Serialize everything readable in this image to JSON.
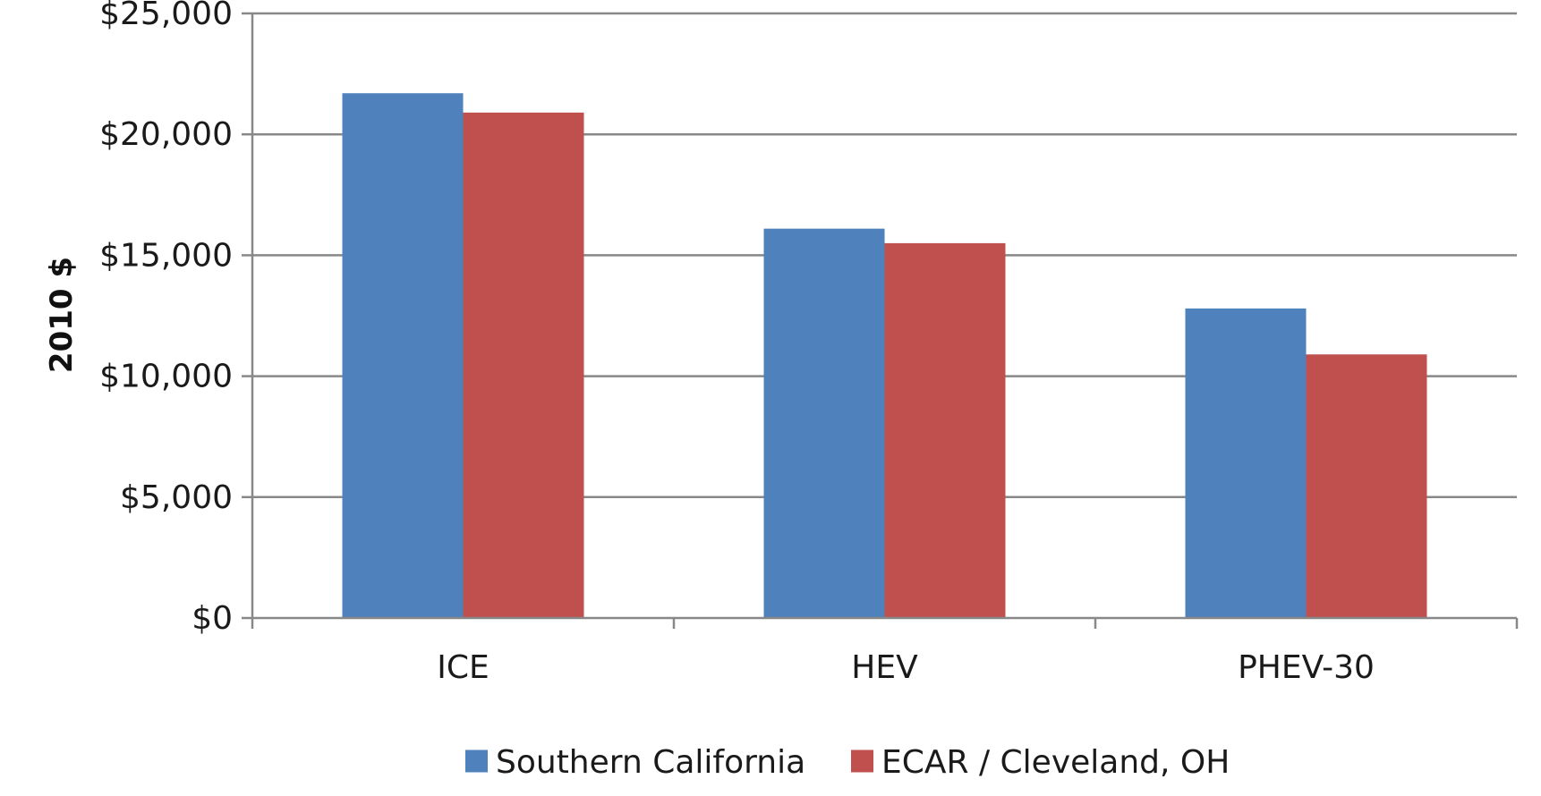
{
  "chart_data": {
    "type": "bar",
    "title": "",
    "xlabel": "",
    "ylabel": "2010 $",
    "ylim": [
      0,
      25000
    ],
    "yticks": [
      0,
      5000,
      10000,
      15000,
      20000,
      25000
    ],
    "ytick_labels": [
      "$0",
      "$5,000",
      "$10,000",
      "$15,000",
      "$20,000",
      "$25,000"
    ],
    "categories": [
      "ICE",
      "HEV",
      "PHEV-30"
    ],
    "series": [
      {
        "name": "Southern California",
        "color": "#4F81BD",
        "values": [
          21700,
          16100,
          12800
        ]
      },
      {
        "name": "ECAR / Cleveland, OH",
        "color": "#C0504D",
        "values": [
          20900,
          15500,
          10900
        ]
      }
    ],
    "grid": true,
    "legend": "bottom-center"
  }
}
